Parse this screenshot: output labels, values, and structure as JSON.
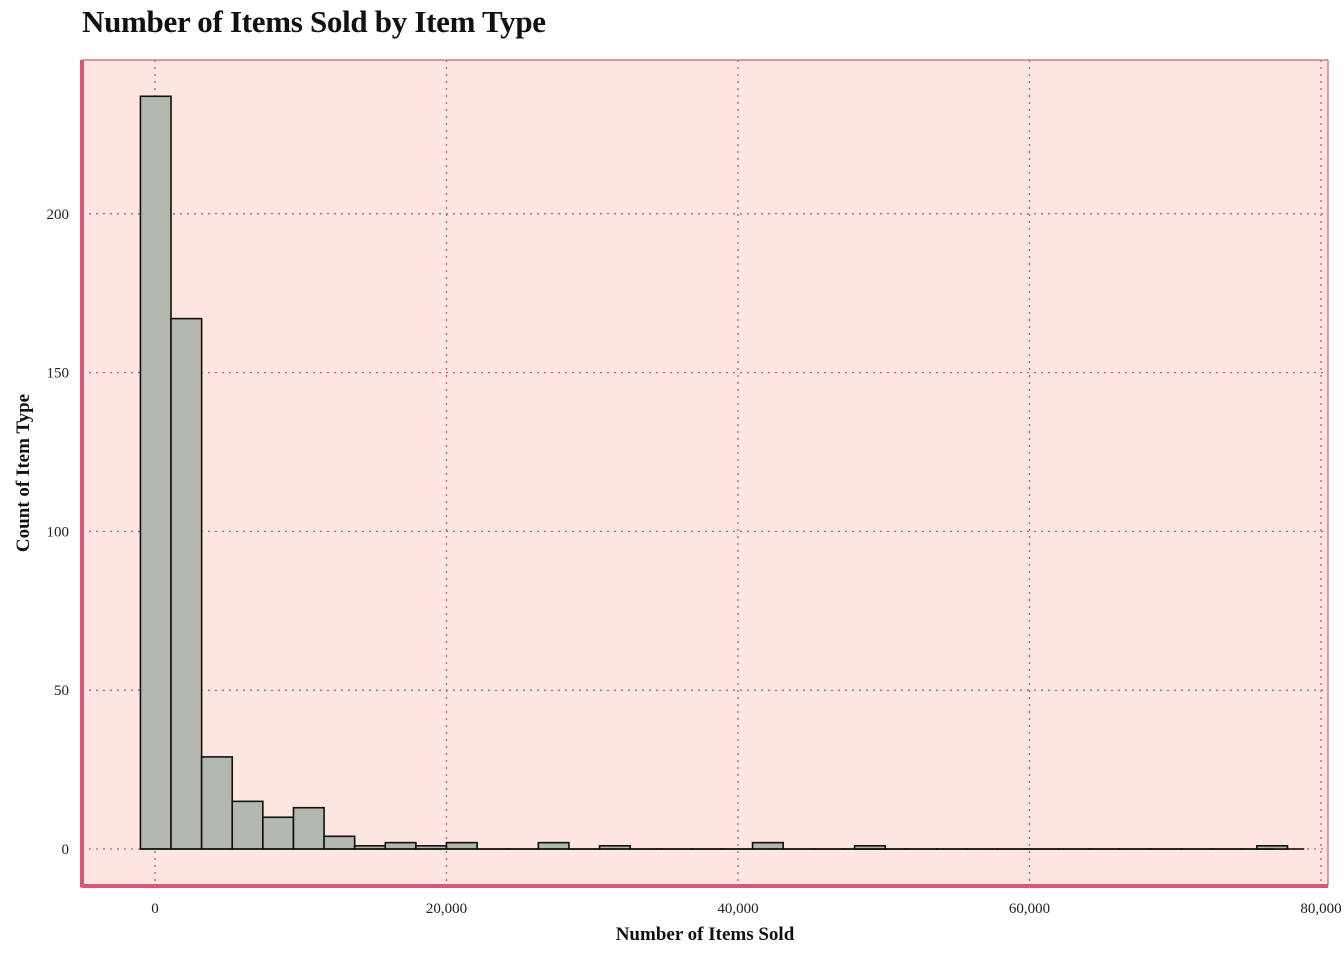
{
  "chart_data": {
    "type": "bar",
    "title": "Number of Items Sold by Item Type",
    "xlabel": "Number of Items Sold",
    "ylabel": "Count of Item Type",
    "bin_width": 2100,
    "bins_start": -1000,
    "values": [
      237,
      167,
      29,
      15,
      10,
      13,
      4,
      1,
      2,
      1,
      2,
      0,
      0,
      2,
      0,
      1,
      0,
      0,
      0,
      0,
      2,
      0,
      0,
      0,
      0,
      0,
      0,
      0,
      0,
      0,
      0,
      0,
      0,
      0,
      0,
      0,
      0,
      0
    ],
    "values_tail": {
      "48000": 1,
      "75600": 1
    },
    "xlim": [
      -5000,
      80000
    ],
    "ylim": [
      -12,
      250
    ],
    "x_ticks": [
      0,
      20000,
      40000,
      60000,
      80000
    ],
    "x_tick_labels": [
      "0",
      "20,000",
      "40,000",
      "60,000",
      "80,000"
    ],
    "y_ticks": [
      0,
      50,
      100,
      150,
      200
    ],
    "y_tick_labels": [
      "0",
      "50",
      "100",
      "150",
      "200"
    ],
    "grid": true,
    "colors": {
      "bar_fill": "#b2b8b0",
      "bar_edge": "#111111",
      "plot_bg": "#fde6e1",
      "frame": "#d9587a",
      "grid": "#cc5566"
    }
  }
}
